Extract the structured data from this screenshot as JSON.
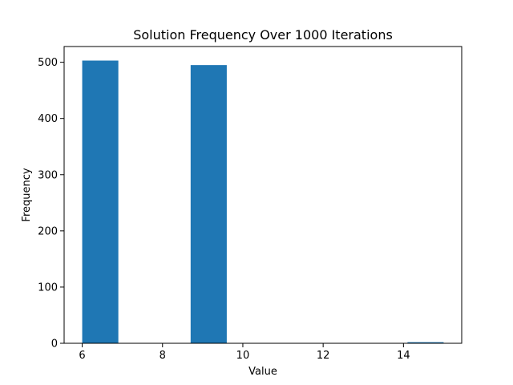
{
  "chart_data": {
    "type": "bar",
    "title": "Solution Frequency Over 1000 Iterations",
    "xlabel": "Value",
    "ylabel": "Frequency",
    "xlim": [
      5.55,
      15.45
    ],
    "ylim": [
      0,
      528
    ],
    "xticks": [
      6,
      8,
      10,
      12,
      14
    ],
    "yticks": [
      0,
      100,
      200,
      300,
      400,
      500
    ],
    "bins": [
      {
        "x0": 6.0,
        "x1": 6.9,
        "value": 503
      },
      {
        "x0": 6.9,
        "x1": 7.8,
        "value": 0
      },
      {
        "x0": 7.8,
        "x1": 8.7,
        "value": 0
      },
      {
        "x0": 8.7,
        "x1": 9.6,
        "value": 495
      },
      {
        "x0": 9.6,
        "x1": 10.5,
        "value": 0
      },
      {
        "x0": 10.5,
        "x1": 11.4,
        "value": 0
      },
      {
        "x0": 11.4,
        "x1": 12.3,
        "value": 0
      },
      {
        "x0": 12.3,
        "x1": 13.2,
        "value": 0
      },
      {
        "x0": 13.2,
        "x1": 14.1,
        "value": 0
      },
      {
        "x0": 14.1,
        "x1": 15.0,
        "value": 2
      }
    ],
    "bar_color": "#1f77b4",
    "grid": false,
    "legend": "none"
  }
}
